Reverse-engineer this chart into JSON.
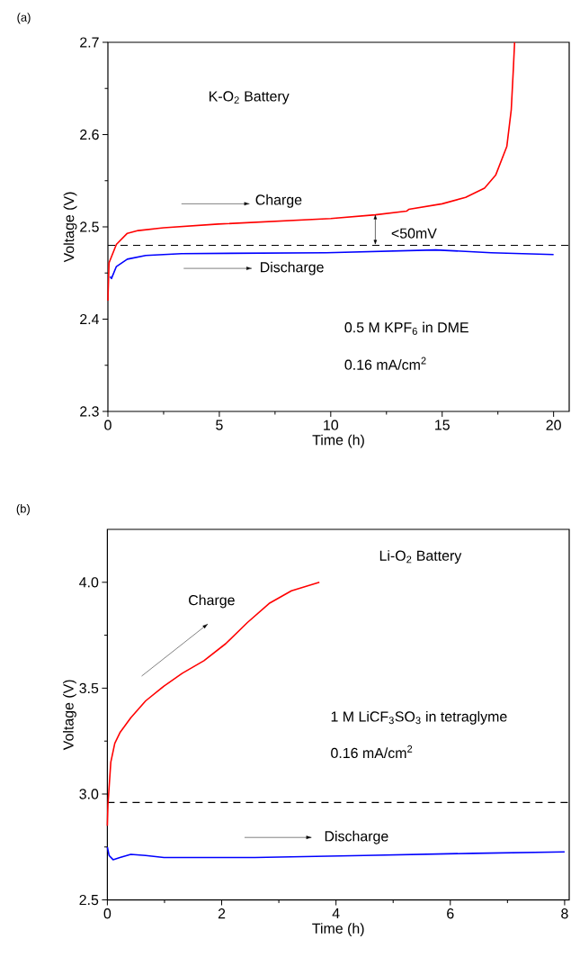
{
  "chart_data": [
    {
      "type": "line",
      "xlabel": "Time (h)",
      "ylabel": "Voltage (V)",
      "annotations": [
        "(a)",
        "K-O$_{2}$ Battery",
        "<50mV",
        "0.5 M KPF$_{6}$ in DME",
        "0.16 mA/cm$^{2}$"
      ],
      "xlim": [
        0,
        20.7
      ],
      "ylim": [
        2.3,
        2.7
      ],
      "xticks": [
        0,
        5,
        10,
        15,
        20
      ],
      "yticks": [
        2.3,
        2.4,
        2.5,
        2.6,
        2.7
      ],
      "legend": false,
      "grid": false,
      "line_style": "solid",
      "marker": "none",
      "ref_lines": [
        {
          "axis": "y",
          "value": 2.48,
          "line_style": "dashed",
          "color": "#000000"
        }
      ],
      "series": [
        {
          "name": "Charge",
          "color": "#ff0000",
          "x": [
            0,
            0.05,
            0.38,
            0.87,
            1.36,
            2.5,
            4.95,
            10,
            12,
            13.4,
            13.5,
            15,
            16.05,
            16.9,
            17.4,
            17.9,
            18.1,
            18.2,
            18.25
          ],
          "values": [
            2.42,
            2.461,
            2.481,
            2.493,
            2.496,
            2.499,
            2.503,
            2.509,
            2.513,
            2.517,
            2.519,
            2.525,
            2.532,
            2.542,
            2.556,
            2.587,
            2.627,
            2.674,
            2.7
          ]
        },
        {
          "name": "Discharge",
          "color": "#0000ff",
          "x": [
            0.1,
            0.16,
            0.38,
            0.87,
            1.7,
            3.3,
            9.8,
            14.7,
            17.2,
            20
          ],
          "values": [
            2.446,
            2.444,
            2.457,
            2.465,
            2.469,
            2.471,
            2.472,
            2.475,
            2.472,
            2.47
          ]
        }
      ]
    },
    {
      "type": "line",
      "xlabel": "Time (h)",
      "ylabel": "Voltage (V)",
      "annotations": [
        "(b)",
        "Li-O$_{2}$ Battery",
        "1 M LiCF$_{3}$SO$_{3}$ in tetraglyme",
        "0.16 mA/cm$^{2}$"
      ],
      "xlim": [
        0,
        8.08
      ],
      "ylim": [
        2.5,
        4.25
      ],
      "xticks": [
        0,
        2,
        4,
        6,
        8
      ],
      "yticks": [
        2.5,
        {
          "value": 3,
          "label": "3.0"
        },
        3.5,
        {
          "value": 4,
          "label": "4.0"
        }
      ],
      "legend": false,
      "grid": false,
      "line_style": "solid",
      "marker": "none",
      "ref_lines": [
        {
          "axis": "y",
          "value": 2.96,
          "line_style": "dashed",
          "color": "#000000"
        }
      ],
      "series": [
        {
          "name": "Charge",
          "color": "#ff0000",
          "x": [
            0,
            0.01,
            0.03,
            0.06,
            0.13,
            0.22,
            0.41,
            0.67,
            0.99,
            1.31,
            1.69,
            2.07,
            2.45,
            2.83,
            3.22,
            3.71
          ],
          "values": [
            2.85,
            2.95,
            3.03,
            3.15,
            3.24,
            3.29,
            3.36,
            3.44,
            3.51,
            3.57,
            3.63,
            3.71,
            3.81,
            3.9,
            3.96,
            4.0
          ]
        },
        {
          "name": "Discharge",
          "color": "#0000ff",
          "x": [
            0,
            0.03,
            0.1,
            0.22,
            0.41,
            0.67,
            0.99,
            2.58,
            4.49,
            6.4,
            8
          ],
          "values": [
            2.75,
            2.71,
            2.69,
            2.7,
            2.715,
            2.71,
            2.7,
            2.7,
            2.71,
            2.72,
            2.727
          ]
        }
      ]
    }
  ]
}
